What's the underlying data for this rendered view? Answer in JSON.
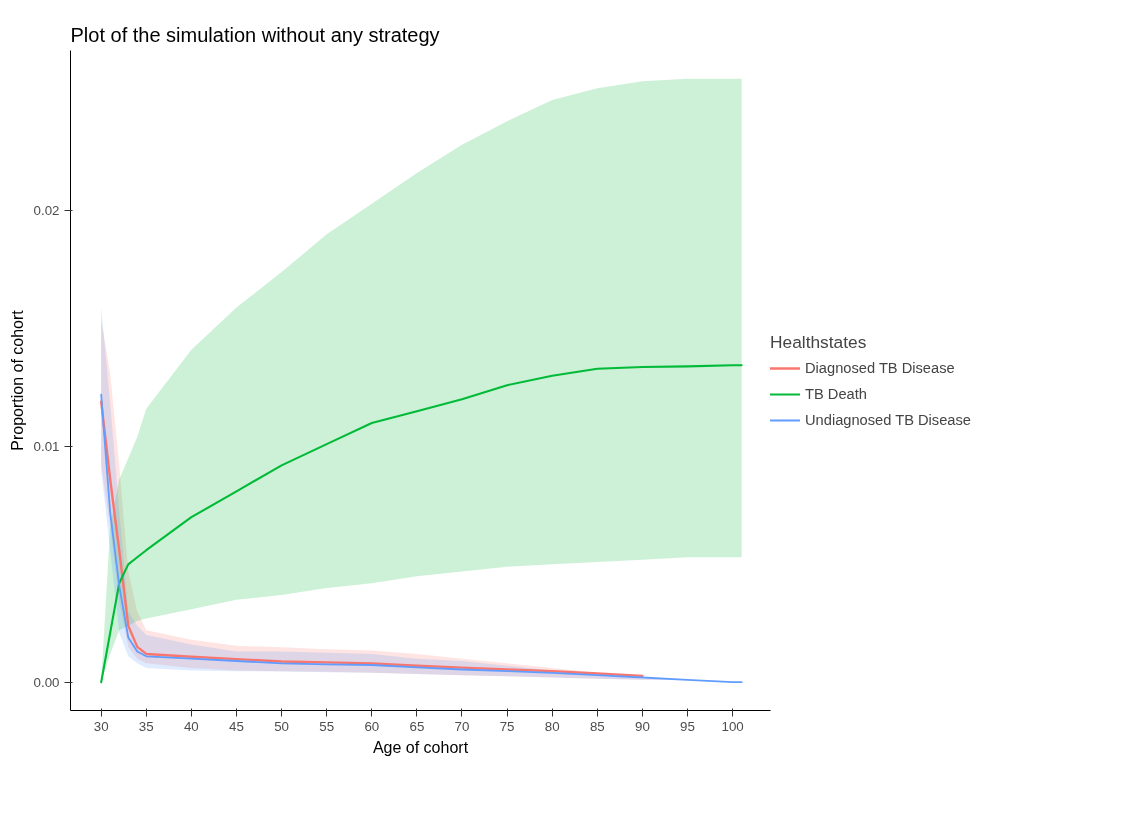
{
  "chart_data": {
    "type": "line",
    "title": "Plot of the simulation without any strategy",
    "xlabel": "Age of cohort",
    "ylabel": "Proportion of cohort",
    "legend_title": "Healthstates",
    "legend": "right",
    "grid": false,
    "marker": "none",
    "line_style": "solid",
    "x": [
      30,
      31,
      32,
      33,
      34,
      35,
      40,
      45,
      50,
      55,
      60,
      65,
      70,
      75,
      80,
      85,
      90,
      95,
      100,
      101
    ],
    "xlim": [
      26.6,
      104.2
    ],
    "xticks": [
      30,
      35,
      40,
      45,
      50,
      55,
      60,
      65,
      70,
      75,
      80,
      85,
      90,
      95,
      100
    ],
    "ylim": [
      -0.0012,
      0.0268
    ],
    "yticks": [
      {
        "value": 0,
        "label": "0.00"
      },
      {
        "value": 0.01,
        "label": "0.01"
      },
      {
        "value": 0.02,
        "label": "0.02"
      }
    ],
    "series": [
      {
        "name": "Diagnosed TB Disease",
        "color": "#f8766d",
        "values": [
          0.0119,
          0.0086,
          0.0056,
          0.0024,
          0.0015,
          0.0012,
          0.00108,
          0.00098,
          0.00088,
          0.00084,
          0.0008,
          0.0007,
          0.00062,
          0.00054,
          0.00047,
          0.00037,
          0.00027,
          null,
          null,
          null
        ],
        "lower": [
          0.0092,
          0.0066,
          0.0034,
          0.0015,
          0.001,
          0.0008,
          0.0006,
          0.0005,
          0.00047,
          0.00044,
          0.0004,
          0.00035,
          0.0003,
          0.00025,
          0.0002,
          0.00015,
          0.0001,
          0.0001,
          0.0,
          0.0
        ],
        "upper": [
          0.0154,
          0.0131,
          0.0092,
          0.0047,
          0.003,
          0.0022,
          0.0018,
          0.00155,
          0.00148,
          0.0014,
          0.00135,
          0.0012,
          0.001,
          0.0008,
          0.0006,
          0.0004,
          0.00015,
          0.0001,
          0.0,
          0.0
        ]
      },
      {
        "name": "TB Death",
        "color": "#00ba38",
        "values": [
          0.0,
          0.0021,
          0.0042,
          0.005,
          0.0053,
          0.0056,
          0.007,
          0.0081,
          0.0092,
          0.0101,
          0.011,
          0.0115,
          0.012,
          0.0126,
          0.013,
          0.0133,
          0.01337,
          0.0134,
          0.01345,
          0.01345
        ],
        "lower": [
          0.0,
          0.0012,
          0.0022,
          0.0024,
          0.0026,
          0.0027,
          0.0031,
          0.0035,
          0.0037,
          0.004,
          0.0042,
          0.0045,
          0.0047,
          0.0049,
          0.005,
          0.0051,
          0.0052,
          0.0053,
          0.0053,
          0.0053
        ],
        "upper": [
          0.0,
          0.0066,
          0.0086,
          0.0095,
          0.0104,
          0.0116,
          0.0141,
          0.0159,
          0.0174,
          0.019,
          0.0203,
          0.0216,
          0.0228,
          0.0238,
          0.0247,
          0.0252,
          0.0255,
          0.0256,
          0.0256,
          0.0256
        ]
      },
      {
        "name": "Undiagnosed TB Disease",
        "color": "#619cff",
        "values": [
          0.0122,
          0.0072,
          0.0041,
          0.0019,
          0.0013,
          0.0011,
          0.001,
          0.0009,
          0.0008,
          0.00076,
          0.00073,
          0.00063,
          0.00054,
          0.00047,
          0.0004,
          0.0003,
          0.0002,
          0.0001,
          0.0,
          0.0
        ],
        "lower": [
          0.009,
          0.0056,
          0.0021,
          0.0011,
          0.0008,
          0.0006,
          0.0005,
          0.00047,
          0.00045,
          0.00042,
          0.0004,
          0.00035,
          0.0003,
          0.00025,
          0.0002,
          0.00015,
          0.0001,
          0.0001,
          0.0,
          0.0
        ],
        "upper": [
          0.0159,
          0.0118,
          0.0073,
          0.003,
          0.0024,
          0.002,
          0.0016,
          0.0013,
          0.0013,
          0.00125,
          0.0012,
          0.001,
          0.0009,
          0.0007,
          0.0005,
          0.0003,
          0.00015,
          0.0001,
          0.0,
          0.0
        ]
      }
    ]
  }
}
